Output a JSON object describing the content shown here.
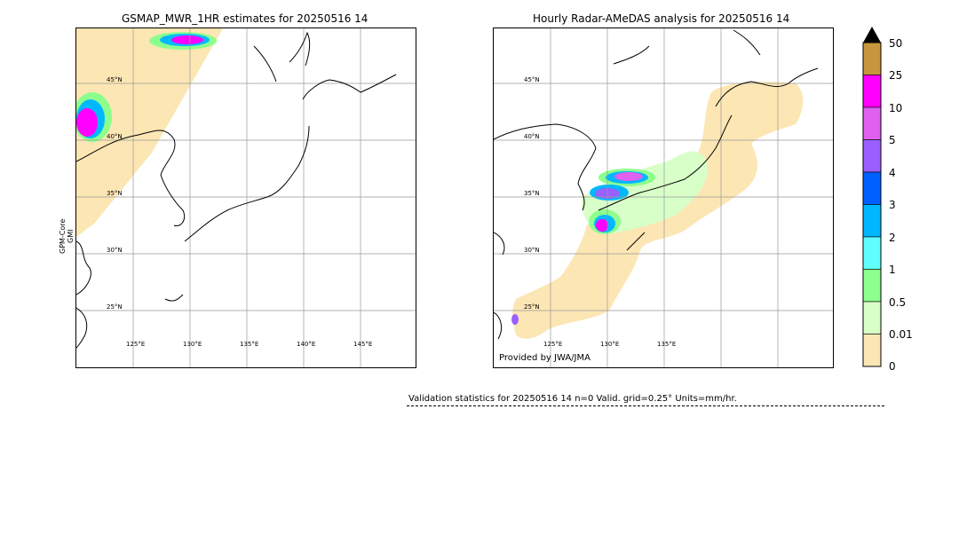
{
  "left_panel": {
    "title": "GSMAP_MWR_1HR estimates for 20250516 14",
    "side_label_line1": "GPM-Core",
    "side_label_line2": "GMI",
    "lat_labels": [
      "45°N",
      "40°N",
      "35°N",
      "30°N",
      "25°N"
    ],
    "lon_labels": [
      "125°E",
      "130°E",
      "135°E",
      "140°E",
      "145°E"
    ]
  },
  "right_panel": {
    "title": "Hourly Radar-AMeDAS analysis for 20250516 14",
    "lat_labels": [
      "45°N",
      "40°N",
      "35°N",
      "30°N",
      "25°N"
    ],
    "lon_labels": [
      "125°E",
      "130°E",
      "135°E"
    ],
    "credit": "Provided by JWA/JMA"
  },
  "colorbar": {
    "labels": [
      "50",
      "25",
      "10",
      "5",
      "4",
      "3",
      "2",
      "1",
      "0.5",
      "0.01",
      "0"
    ],
    "colors": [
      "#c8963c",
      "#ff00ff",
      "#e060f0",
      "#9a60ff",
      "#0060ff",
      "#00b8ff",
      "#60ffff",
      "#8cff8c",
      "#d8ffc8",
      "#fce6b4"
    ],
    "over_color": "#000000"
  },
  "stats": {
    "text": "Validation statistics for 20250516 14  n=0 Valid. grid=0.25° Units=mm/hr."
  }
}
